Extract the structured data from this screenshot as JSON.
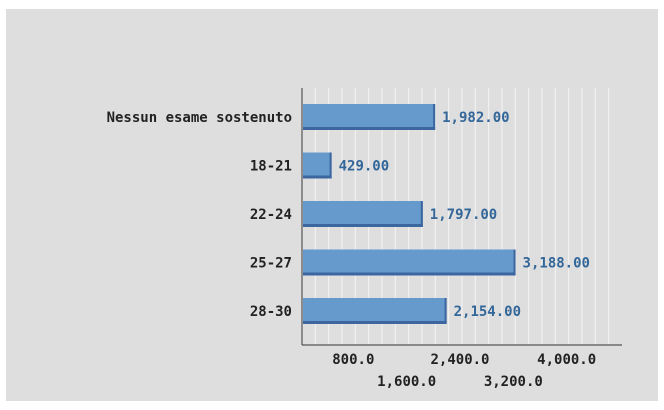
{
  "chart_data": {
    "type": "bar",
    "orientation": "horizontal",
    "categories": [
      "Nessun esame sostenuto",
      "18-21",
      "22-24",
      "25-27",
      "28-30"
    ],
    "values": [
      1982.0,
      429.0,
      1797.0,
      3188.0,
      2154.0
    ],
    "value_labels": [
      "1,982.00",
      "429.00",
      "1,797.00",
      "3,188.00",
      "2,154.00"
    ],
    "xlim": [
      0,
      4800
    ],
    "x_ticks": [
      800,
      1600,
      2400,
      3200,
      4000
    ],
    "x_tick_labels": [
      "800.0",
      "1,600.0",
      "2,400.0",
      "3,200.0",
      "4,000.0"
    ],
    "grid": "vertical",
    "colors": {
      "bar_fill": "#6699cc",
      "bar_shade": "#3b66a0",
      "value_label": "#336699",
      "category_label": "#222222",
      "grid": "#f4f4f4",
      "axis": "#555555"
    }
  }
}
